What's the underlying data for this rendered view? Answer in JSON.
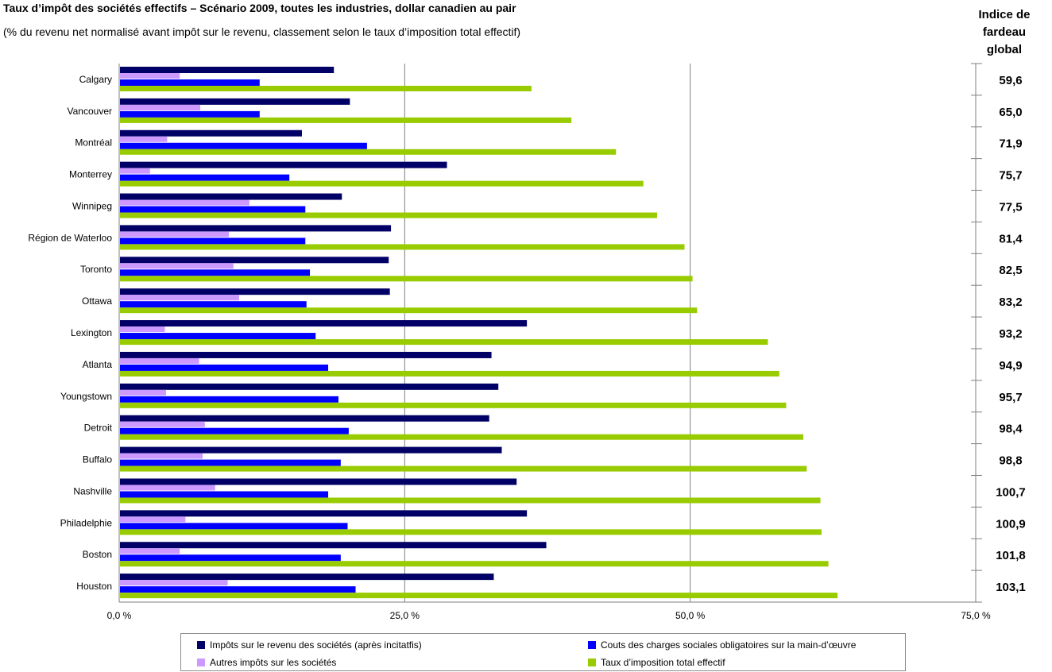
{
  "header": {
    "title": "Taux d’impôt des sociétés effectifs – Scénario 2009, toutes les industries, dollar canadien au pair",
    "subtitle": "(% du revenu net normalisé avant impôt sur le revenu, classement selon le taux d’imposition total effectif)",
    "index_header_lines": [
      "Indice de",
      "fardeau",
      "global"
    ]
  },
  "chart_data": {
    "type": "bar",
    "orientation": "horizontal",
    "title": "Taux d’impôt des sociétés effectifs – Scénario 2009, toutes les industries, dollar canadien au pair",
    "subtitle": "(% du revenu net normalisé avant impôt sur le revenu, classement selon le taux d’imposition total effectif)",
    "categories": [
      "Calgary",
      "Vancouver",
      "Montréal",
      "Monterrey",
      "Winnipeg",
      "Région de Waterloo",
      "Toronto",
      "Ottawa",
      "Lexington",
      "Atlanta",
      "Youngstown",
      "Detroit",
      "Buffalo",
      "Nashville",
      "Philadelphie",
      "Boston",
      "Houston"
    ],
    "series": [
      {
        "name": "Impôts sur le revenu des sociétés (après incitatfis)",
        "color": "#000066",
        "values": [
          18.8,
          20.2,
          16.0,
          28.7,
          19.5,
          23.8,
          23.6,
          23.7,
          35.7,
          32.6,
          33.2,
          32.4,
          33.5,
          34.8,
          35.7,
          37.4,
          32.8
        ]
      },
      {
        "name": "Autres impôts sur les sociétés",
        "color": "#CC99FF",
        "values": [
          5.3,
          7.1,
          4.2,
          2.7,
          11.4,
          9.6,
          10.0,
          10.5,
          4.0,
          7.0,
          4.1,
          7.5,
          7.3,
          8.4,
          5.8,
          5.3,
          9.5
        ]
      },
      {
        "name": "Couts des charges sociales obligatoires sur la main-d’œuvre",
        "color": "#0000FF",
        "values": [
          12.3,
          12.3,
          21.7,
          14.9,
          16.3,
          16.3,
          16.7,
          16.4,
          17.2,
          18.3,
          19.2,
          20.1,
          19.4,
          18.3,
          20.0,
          19.4,
          20.7
        ]
      },
      {
        "name": "Taux d’imposition total effectif",
        "color": "#99CC00",
        "values": [
          36.1,
          39.6,
          43.5,
          45.9,
          47.1,
          49.5,
          50.2,
          50.6,
          56.8,
          57.8,
          58.4,
          59.9,
          60.2,
          61.4,
          61.5,
          62.1,
          62.9
        ]
      }
    ],
    "index_values": [
      "59,6",
      "65,0",
      "71,9",
      "75,7",
      "77,5",
      "81,4",
      "82,5",
      "83,2",
      "93,2",
      "94,9",
      "95,7",
      "98,4",
      "98,8",
      "100,7",
      "100,9",
      "101,8",
      "103,1"
    ],
    "xlim": [
      0,
      75
    ],
    "xticks": [
      0,
      25,
      50,
      75
    ],
    "xtick_labels": [
      "0,0 %",
      "25,0 %",
      "50,0 %",
      "75,0 %"
    ],
    "xlabel": "",
    "ylabel": "",
    "grid": true,
    "legend_position": "bottom"
  }
}
